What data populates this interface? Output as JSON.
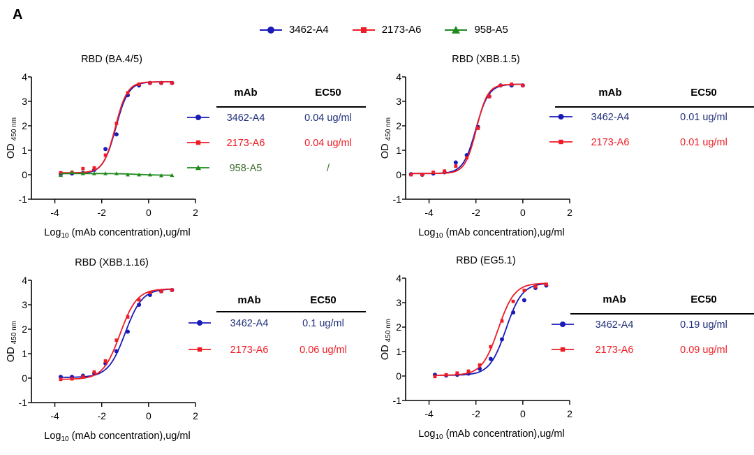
{
  "figure_label": "A",
  "colors": {
    "3462-A4": "#1a1ab8",
    "2173-A6": "#ee1c24",
    "958-A5": "#1f8a1f",
    "axis": "#000000"
  },
  "legend": [
    {
      "name": "3462-A4",
      "marker": "circle"
    },
    {
      "name": "2173-A6",
      "marker": "square"
    },
    {
      "name": "958-A5",
      "marker": "triangle"
    }
  ],
  "chart_data": [
    {
      "type": "line",
      "title": "RBD (BA.4/5)",
      "xlabel": "Log10 (mAb concentration),ug/ml",
      "ylabel": "OD 450 nm",
      "xlim": [
        -5,
        2
      ],
      "ylim": [
        -1,
        4
      ],
      "xticks": [
        -4,
        -2,
        0,
        2
      ],
      "yticks": [
        -1,
        0,
        1,
        2,
        3,
        4
      ],
      "x": [
        -3.75,
        -3.27,
        -2.8,
        -2.32,
        -1.84,
        -1.37,
        -0.89,
        -0.41,
        0.06,
        0.54,
        1.0
      ],
      "series": [
        {
          "name": "3462-A4",
          "values": [
            0.02,
            0.05,
            0.07,
            0.2,
            1.05,
            1.65,
            3.25,
            3.65,
            3.75,
            3.75,
            3.75
          ],
          "fit": {
            "bottom": 0.05,
            "top": 3.8,
            "logEC50": -1.4,
            "hill": 1.6
          }
        },
        {
          "name": "2173-A6",
          "values": [
            0.08,
            0.1,
            0.25,
            0.28,
            0.8,
            2.1,
            3.35,
            3.7,
            3.75,
            3.75,
            3.75
          ],
          "fit": {
            "bottom": 0.08,
            "top": 3.8,
            "logEC50": -1.42,
            "hill": 1.7
          }
        },
        {
          "name": "958-A5",
          "values": [
            -0.02,
            0.1,
            0.05,
            0.05,
            0.05,
            0.05,
            0.0,
            0.0,
            0.0,
            -0.03,
            -0.02
          ],
          "fit": {
            "bottom": 0.05,
            "top": -0.02,
            "logEC50": -0.5,
            "hill": 1
          }
        }
      ],
      "table": {
        "headers": [
          "mAb",
          "EC50"
        ],
        "rows": [
          {
            "mAb": "3462-A4",
            "EC50": "0.04 ug/ml"
          },
          {
            "mAb": "2173-A6",
            "EC50": "0.04 ug/ml"
          },
          {
            "mAb": "958-A5",
            "EC50": "/"
          }
        ]
      }
    },
    {
      "type": "line",
      "title": "RBD (XBB.1.5)",
      "xlabel": "Log10 (mAb concentration),ug/ml",
      "ylabel": "OD 450 nm",
      "xlim": [
        -5,
        2
      ],
      "ylim": [
        -1,
        4
      ],
      "xticks": [
        -4,
        -2,
        0,
        2
      ],
      "yticks": [
        -1,
        0,
        1,
        2,
        3,
        4
      ],
      "x": [
        -4.77,
        -4.29,
        -3.82,
        -3.34,
        -2.86,
        -2.39,
        -1.91,
        -1.43,
        -0.95,
        -0.48,
        0.0
      ],
      "series": [
        {
          "name": "3462-A4",
          "values": [
            0.02,
            0.0,
            0.05,
            0.1,
            0.5,
            0.8,
            1.95,
            3.2,
            3.65,
            3.65,
            3.65
          ],
          "fit": {
            "bottom": 0.05,
            "top": 3.7,
            "logEC50": -2.0,
            "hill": 1.6
          }
        },
        {
          "name": "2173-A6",
          "values": [
            0.0,
            0.0,
            0.1,
            0.15,
            0.35,
            0.7,
            1.9,
            3.2,
            3.65,
            3.7,
            3.65
          ],
          "fit": {
            "bottom": 0.05,
            "top": 3.7,
            "logEC50": -1.98,
            "hill": 1.8
          }
        }
      ],
      "table": {
        "headers": [
          "mAb",
          "EC50"
        ],
        "rows": [
          {
            "mAb": "3462-A4",
            "EC50": "0.01 ug/ml"
          },
          {
            "mAb": "2173-A6",
            "EC50": "0.01 ug/ml"
          }
        ]
      }
    },
    {
      "type": "line",
      "title": "RBD (XBB.1.16)",
      "xlabel": "Log10 (mAb concentration),ug/ml",
      "ylabel": "OD 450 nm",
      "xlim": [
        -5,
        2
      ],
      "ylim": [
        -1,
        4
      ],
      "xticks": [
        -4,
        -2,
        0,
        2
      ],
      "yticks": [
        -1,
        0,
        1,
        2,
        3,
        4
      ],
      "x": [
        -3.75,
        -3.27,
        -2.8,
        -2.32,
        -1.84,
        -1.37,
        -0.89,
        -0.41,
        0.06,
        0.54,
        1.0
      ],
      "series": [
        {
          "name": "3462-A4",
          "values": [
            0.05,
            0.05,
            0.1,
            0.2,
            0.6,
            1.1,
            1.9,
            3.0,
            3.4,
            3.55,
            3.6
          ],
          "fit": {
            "bottom": 0.03,
            "top": 3.65,
            "logEC50": -1.0,
            "hill": 1.2
          }
        },
        {
          "name": "2173-A6",
          "values": [
            -0.05,
            -0.03,
            0.05,
            0.25,
            0.7,
            1.55,
            2.5,
            3.2,
            3.5,
            3.55,
            3.6
          ],
          "fit": {
            "bottom": -0.05,
            "top": 3.65,
            "logEC50": -1.22,
            "hill": 1.2
          }
        }
      ],
      "table": {
        "headers": [
          "mAb",
          "EC50"
        ],
        "rows": [
          {
            "mAb": "3462-A4",
            "EC50": "0.1 ug/ml"
          },
          {
            "mAb": "2173-A6",
            "EC50": "0.06 ug/ml"
          }
        ]
      }
    },
    {
      "type": "line",
      "title": "RBD (EG5.1)",
      "xlabel": "Log10 (mAb concentration),ug/ml",
      "ylabel": "OD 450 nm",
      "xlim": [
        -5,
        2
      ],
      "ylim": [
        -1,
        4
      ],
      "xticks": [
        -4,
        -2,
        0,
        2
      ],
      "yticks": [
        -1,
        0,
        1,
        2,
        3,
        4
      ],
      "x": [
        -3.75,
        -3.27,
        -2.8,
        -2.32,
        -1.84,
        -1.37,
        -0.89,
        -0.41,
        0.06,
        0.54,
        1.0
      ],
      "series": [
        {
          "name": "3462-A4",
          "values": [
            0.05,
            0.02,
            0.05,
            0.1,
            0.3,
            0.7,
            1.5,
            2.6,
            3.1,
            3.6,
            3.7
          ],
          "fit": {
            "bottom": 0.03,
            "top": 3.8,
            "logEC50": -0.72,
            "hill": 1.25
          }
        },
        {
          "name": "2173-A6",
          "values": [
            -0.02,
            0.05,
            0.12,
            0.2,
            0.45,
            1.2,
            2.25,
            3.05,
            3.5,
            3.65,
            3.75
          ],
          "fit": {
            "bottom": 0.03,
            "top": 3.8,
            "logEC50": -1.05,
            "hill": 1.25
          }
        }
      ],
      "table": {
        "headers": [
          "mAb",
          "EC50"
        ],
        "rows": [
          {
            "mAb": "3462-A4",
            "EC50": "0.19 ug/ml"
          },
          {
            "mAb": "2173-A6",
            "EC50": "0.09 ug/ml"
          }
        ]
      }
    }
  ]
}
